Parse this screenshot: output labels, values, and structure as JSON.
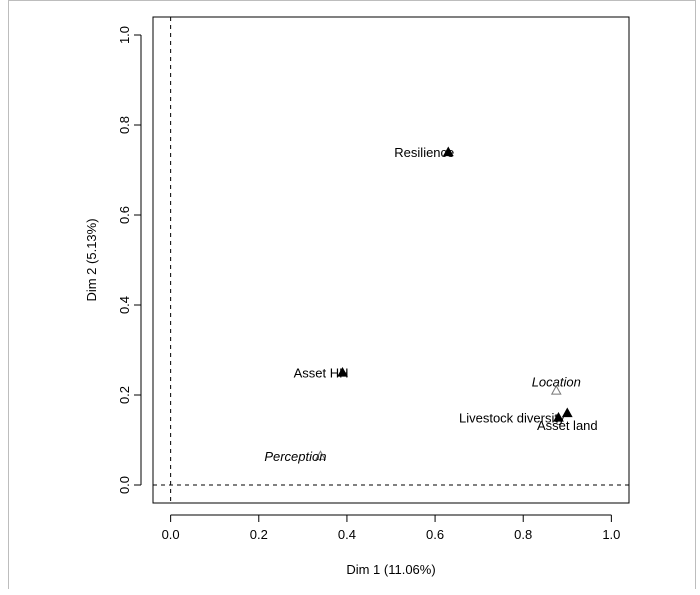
{
  "chart_data": {
    "type": "scatter",
    "xlabel": "Dim 1 (11.06%)",
    "ylabel": "Dim 2 (5.13%)",
    "xlim": [
      -0.04,
      1.04
    ],
    "ylim": [
      -0.04,
      1.04
    ],
    "xticks": [
      "0.0",
      "0.2",
      "0.4",
      "0.6",
      "0.8",
      "1.0"
    ],
    "yticks": [
      "0.0",
      "0.2",
      "0.4",
      "0.6",
      "0.8",
      "1.0"
    ],
    "reference_lines": {
      "x": 0,
      "y": 0,
      "style": "dashed"
    },
    "grid": false,
    "points": [
      {
        "label": "Resilience",
        "x": 0.63,
        "y": 0.74,
        "marker": "filled-triangle",
        "label_italic": false,
        "label_pos": "left"
      },
      {
        "label": "Asset HH",
        "x": 0.39,
        "y": 0.25,
        "marker": "filled-triangle",
        "label_italic": false,
        "label_pos": "left"
      },
      {
        "label": "Location",
        "x": 0.875,
        "y": 0.21,
        "marker": "open-triangle",
        "label_italic": true,
        "label_pos": "center"
      },
      {
        "label": "Livestock diversity",
        "x": 0.88,
        "y": 0.15,
        "marker": "filled-triangle",
        "label_italic": false,
        "label_pos": "left"
      },
      {
        "label": "Asset land",
        "x": 0.9,
        "y": 0.16,
        "marker": "filled-triangle",
        "label_italic": false,
        "label_pos": "below"
      },
      {
        "label": "Perception",
        "x": 0.34,
        "y": 0.065,
        "marker": "open-triangle",
        "label_italic": true,
        "label_pos": "left"
      }
    ]
  }
}
